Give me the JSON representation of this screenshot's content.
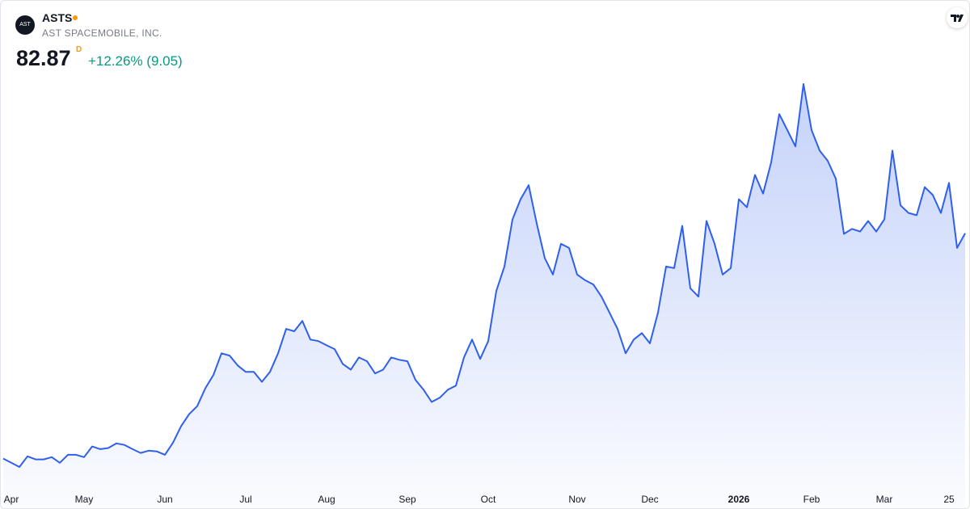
{
  "header": {
    "logo_text": "AST",
    "symbol": "ASTS",
    "company": "AST SPACEMOBILE, INC.",
    "price": "82.87",
    "interval": "D",
    "change": "+12.26% (9.05)"
  },
  "chart_data": {
    "type": "area",
    "categories": [
      null,
      "Apr",
      null,
      null,
      null,
      null,
      null,
      null,
      null,
      null,
      "May",
      null,
      null,
      null,
      null,
      null,
      null,
      null,
      null,
      null,
      "Jun",
      null,
      null,
      null,
      null,
      null,
      null,
      null,
      null,
      null,
      "Jul",
      null,
      null,
      null,
      null,
      null,
      null,
      null,
      null,
      null,
      "Aug",
      null,
      null,
      null,
      null,
      null,
      null,
      null,
      null,
      null,
      "Sep",
      null,
      null,
      null,
      null,
      null,
      null,
      null,
      null,
      null,
      "Oct",
      null,
      null,
      null,
      null,
      null,
      null,
      null,
      null,
      null,
      null,
      "Nov",
      null,
      null,
      null,
      null,
      null,
      null,
      null,
      null,
      "Dec",
      null,
      null,
      null,
      null,
      null,
      null,
      null,
      null,
      null,
      null,
      "2026",
      null,
      null,
      null,
      null,
      null,
      null,
      null,
      null,
      "Feb",
      null,
      null,
      null,
      null,
      null,
      null,
      null,
      null,
      "Mar",
      null,
      null,
      null,
      null,
      null,
      null,
      null,
      "25",
      null,
      null
    ],
    "series": [
      {
        "name": "ASTS",
        "color": "#2f5fec",
        "values": [
          23.6,
          22.5,
          21.4,
          24.2,
          23.4,
          23.4,
          24.0,
          22.5,
          24.6,
          24.6,
          24.0,
          26.8,
          26.1,
          26.4,
          27.6,
          27.2,
          26.1,
          25.1,
          25.7,
          25.5,
          24.6,
          27.8,
          32.1,
          35.3,
          37.4,
          42.1,
          45.6,
          51.3,
          50.7,
          48.1,
          46.4,
          46.4,
          43.8,
          46.4,
          51.3,
          57.7,
          57.1,
          59.8,
          54.9,
          54.5,
          53.4,
          52.4,
          48.5,
          47.0,
          50.2,
          49.2,
          46.0,
          47.0,
          50.2,
          49.6,
          49.2,
          44.3,
          41.7,
          38.5,
          39.6,
          41.7,
          42.8,
          50.2,
          54.9,
          49.8,
          54.5,
          67.7,
          74.1,
          86.5,
          91.8,
          95.5,
          85.4,
          76.3,
          72.0,
          80.1,
          79.0,
          72.0,
          70.5,
          69.4,
          66.2,
          62.0,
          57.7,
          51.3,
          54.9,
          56.6,
          53.9,
          62.0,
          74.1,
          73.7,
          84.8,
          68.4,
          66.2,
          86.1,
          80.1,
          72.0,
          73.7,
          91.8,
          89.7,
          98.2,
          93.3,
          101.5,
          114.2,
          110.0,
          105.7,
          122.1,
          110.0,
          104.6,
          101.9,
          97.2,
          82.7,
          84.0,
          83.3,
          86.1,
          83.3,
          86.5,
          104.6,
          90.2,
          88.2,
          87.6,
          95.0,
          92.9,
          88.2,
          96.1,
          79.0,
          82.87
        ]
      }
    ]
  }
}
